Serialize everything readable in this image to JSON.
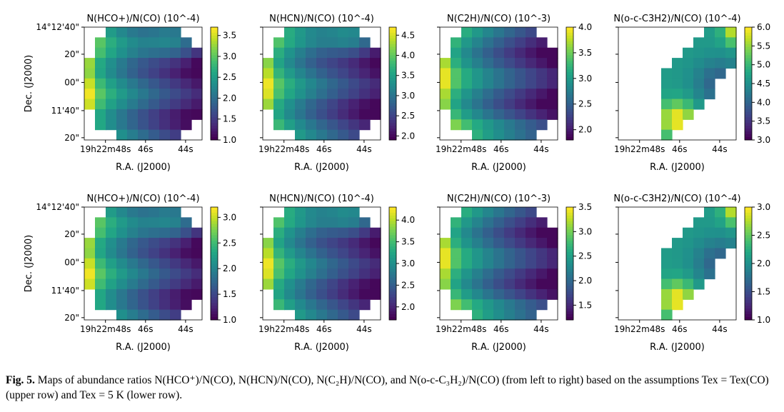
{
  "figure": {
    "y_axis_label": "Dec. (J2000)",
    "x_axis_label": "R.A. (J2000)",
    "x_ticks": [
      "19h22m48s",
      "46s",
      "44s"
    ],
    "y_ticks": [
      "14°12'40\"",
      "20\"",
      "00\"",
      "11'40\"",
      "20\""
    ],
    "colormap": "viridis"
  },
  "caption": {
    "label": "Fig. 5.",
    "text": "Maps of abundance ratios N(HCO⁺)/N(CO), N(HCN)/N(CO), N(C₂H)/N(CO), and N(o-c-C₃H₂)/N(CO) (from left to right) based on the assumptions Tex = Tex(CO) (upper row) and Tex = 5 K (lower row)."
  },
  "chart_data": [
    {
      "type": "heatmap",
      "row": "upper",
      "title": "N(HCO+)/N(CO) (10^-4)",
      "colorbar_ticks": [
        "1.0",
        "1.5",
        "2.0",
        "2.5",
        "3.0",
        "3.5"
      ],
      "clim": [
        1.0,
        3.7
      ],
      "xlabel": "R.A. (J2000)",
      "ylabel": "Dec. (J2000)"
    },
    {
      "type": "heatmap",
      "row": "upper",
      "title": "N(HCN)/N(CO) (10^-4)",
      "colorbar_ticks": [
        "2.0",
        "2.5",
        "3.0",
        "3.5",
        "4.0",
        "4.5"
      ],
      "clim": [
        1.9,
        4.7
      ],
      "xlabel": "R.A. (J2000)"
    },
    {
      "type": "heatmap",
      "row": "upper",
      "title": "N(C2H)/N(CO) (10^-3)",
      "colorbar_ticks": [
        "2.0",
        "2.5",
        "3.0",
        "3.5",
        "4.0"
      ],
      "clim": [
        1.8,
        4.0
      ],
      "xlabel": "R.A. (J2000)"
    },
    {
      "type": "heatmap",
      "row": "upper",
      "title": "N(o-c-C3H2)/N(CO) (10^-4)",
      "colorbar_ticks": [
        "3.0",
        "3.5",
        "4.0",
        "4.5",
        "5.0",
        "5.5",
        "6.0"
      ],
      "clim": [
        3.0,
        6.0
      ],
      "xlabel": "R.A. (J2000)"
    },
    {
      "type": "heatmap",
      "row": "lower",
      "title": "N(HCO+)/N(CO) (10^-4)",
      "colorbar_ticks": [
        "1.0",
        "1.5",
        "2.0",
        "2.5",
        "3.0"
      ],
      "clim": [
        1.0,
        3.2
      ],
      "xlabel": "R.A. (J2000)",
      "ylabel": "Dec. (J2000)"
    },
    {
      "type": "heatmap",
      "row": "lower",
      "title": "N(HCN)/N(CO) (10^-4)",
      "colorbar_ticks": [
        "2.0",
        "2.5",
        "3.0",
        "3.5",
        "4.0"
      ],
      "clim": [
        1.7,
        4.3
      ],
      "xlabel": "R.A. (J2000)"
    },
    {
      "type": "heatmap",
      "row": "lower",
      "title": "N(C2H)/N(CO) (10^-3)",
      "colorbar_ticks": [
        "1.5",
        "2.0",
        "2.5",
        "3.0",
        "3.5"
      ],
      "clim": [
        1.2,
        3.5
      ],
      "xlabel": "R.A. (J2000)"
    },
    {
      "type": "heatmap",
      "row": "lower",
      "title": "N(o-c-C3H2)/N(CO) (10^-4)",
      "colorbar_ticks": [
        "1.0",
        "1.5",
        "2.0",
        "2.5",
        "3.0"
      ],
      "clim": [
        1.0,
        3.0
      ],
      "xlabel": "R.A. (J2000)"
    }
  ]
}
